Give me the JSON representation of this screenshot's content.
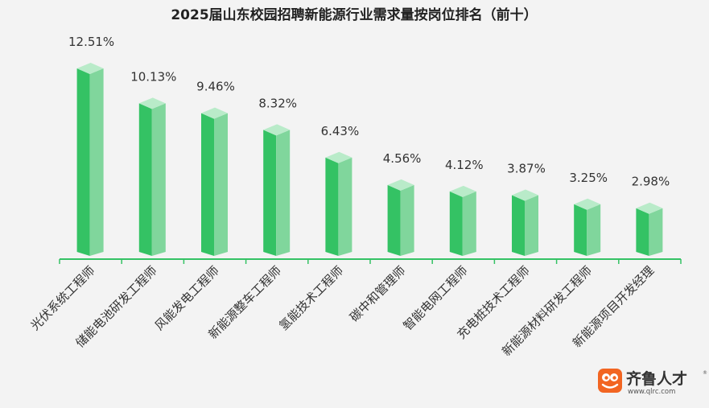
{
  "chart_data": {
    "type": "bar",
    "title": "2025届山东校园招聘新能源行业需求量按岗位排名（前十）",
    "categories": [
      "光伏系统工程师",
      "储能电池研发工程师",
      "风能发电工程师",
      "新能源整车工程师",
      "氢能技术工程师",
      "碳中和管理师",
      "智能电网工程师",
      "充电桩技术工程师",
      "新能源材料研发工程师",
      "新能源项目开发经理"
    ],
    "values": [
      12.51,
      10.13,
      9.46,
      8.32,
      6.43,
      4.56,
      4.12,
      3.87,
      3.25,
      2.98
    ],
    "value_labels": [
      "12.51%",
      "10.13%",
      "9.46%",
      "8.32%",
      "6.43%",
      "4.56%",
      "4.12%",
      "3.87%",
      "3.25%",
      "2.98%"
    ],
    "unit": "%",
    "ylim": [
      0,
      13.5
    ],
    "grid": false,
    "legend": "none",
    "colors": {
      "bar_front": "#34c264",
      "bar_side": "#80d69c",
      "bar_top": "#b9ebc9",
      "axis": "#34c264",
      "background": "#f3f3f3"
    }
  },
  "logo": {
    "name": "齐鲁人才",
    "url": "www.qlrc.com",
    "registered": "®",
    "icon": "frog-logo-icon",
    "color": "#f26522"
  }
}
